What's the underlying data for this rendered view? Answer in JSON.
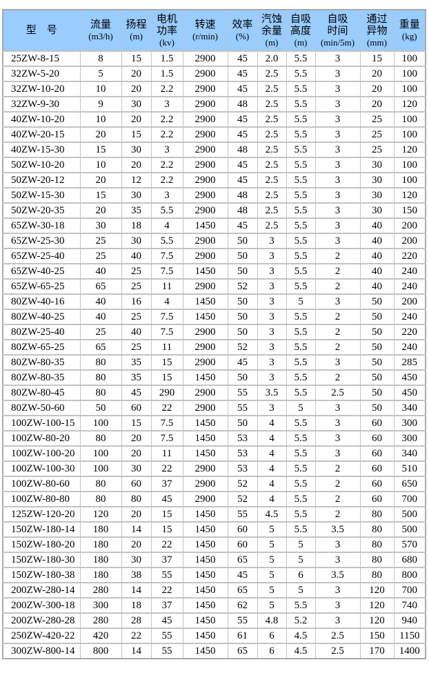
{
  "colors": {
    "header_bg": "#99ccff",
    "grid_border": "#c3c3c3",
    "outer_border": "#a9a9a9",
    "row_bg": "#ffffff",
    "text": "#000000"
  },
  "table": {
    "columns": [
      {
        "key": "model",
        "lines": [
          "型　号"
        ]
      },
      {
        "key": "flow",
        "lines": [
          "流量",
          "(m3/h)"
        ]
      },
      {
        "key": "head",
        "lines": [
          "扬程",
          "(m)"
        ]
      },
      {
        "key": "motor_power",
        "lines": [
          "电机",
          "功率",
          "(kv)"
        ]
      },
      {
        "key": "speed",
        "lines": [
          "转速",
          "(r/min)"
        ]
      },
      {
        "key": "efficiency",
        "lines": [
          "效率",
          "(%)"
        ]
      },
      {
        "key": "npsh",
        "lines": [
          "汽蚀",
          "余量",
          "(m)"
        ]
      },
      {
        "key": "suction_height",
        "lines": [
          "自吸",
          "高度",
          "(m)"
        ]
      },
      {
        "key": "suction_time",
        "lines": [
          "自吸",
          "时间",
          "(min/5m)"
        ]
      },
      {
        "key": "particle_size",
        "lines": [
          "通过",
          "异物",
          "(mm)"
        ]
      },
      {
        "key": "weight",
        "lines": [
          "重量",
          "(kg)"
        ]
      }
    ],
    "rows": [
      [
        "25ZW-8-15",
        "8",
        "15",
        "1.5",
        "2900",
        "45",
        "2.0",
        "5.5",
        "3",
        "15",
        "100"
      ],
      [
        "32ZW-5-20",
        "5",
        "20",
        "1.5",
        "2900",
        "45",
        "2.5",
        "5.5",
        "3",
        "20",
        "100"
      ],
      [
        "32ZW-10-20",
        "10",
        "20",
        "2.2",
        "2900",
        "45",
        "2.5",
        "5.5",
        "3",
        "20",
        "100"
      ],
      [
        "32ZW-9-30",
        "9",
        "30",
        "3",
        "2900",
        "48",
        "2.5",
        "5.5",
        "3",
        "20",
        "120"
      ],
      [
        "40ZW-10-20",
        "10",
        "20",
        "2.2",
        "2900",
        "45",
        "2.5",
        "5.5",
        "3",
        "25",
        "100"
      ],
      [
        "40ZW-20-15",
        "20",
        "15",
        "2.2",
        "2900",
        "45",
        "2.5",
        "5.5",
        "3",
        "25",
        "100"
      ],
      [
        "40ZW-15-30",
        "15",
        "30",
        "3",
        "2900",
        "48",
        "2.5",
        "5.5",
        "3",
        "25",
        "120"
      ],
      [
        "50ZW-10-20",
        "10",
        "20",
        "2.2",
        "2900",
        "45",
        "2.5",
        "5.5",
        "3",
        "30",
        "100"
      ],
      [
        "50ZW-20-12",
        "20",
        "12",
        "2.2",
        "2900",
        "45",
        "2.5",
        "5.5",
        "3",
        "30",
        "100"
      ],
      [
        "50ZW-15-30",
        "15",
        "30",
        "3",
        "2900",
        "48",
        "2.5",
        "5.5",
        "3",
        "30",
        "120"
      ],
      [
        "50ZW-20-35",
        "20",
        "35",
        "5.5",
        "2900",
        "48",
        "2.5",
        "5.5",
        "3",
        "30",
        "150"
      ],
      [
        "65ZW-30-18",
        "30",
        "18",
        "4",
        "1450",
        "45",
        "2.5",
        "5.5",
        "3",
        "40",
        "200"
      ],
      [
        "65ZW-25-30",
        "25",
        "30",
        "5.5",
        "2900",
        "50",
        "3",
        "5.5",
        "3",
        "40",
        "200"
      ],
      [
        "65ZW-25-40",
        "25",
        "40",
        "7.5",
        "2900",
        "50",
        "3",
        "5.5",
        "2",
        "40",
        "220"
      ],
      [
        "65ZW-40-25",
        "40",
        "25",
        "7.5",
        "1450",
        "50",
        "3",
        "5.5",
        "2",
        "40",
        "240"
      ],
      [
        "65ZW-65-25",
        "65",
        "25",
        "11",
        "2900",
        "52",
        "3",
        "5.5",
        "2",
        "40",
        "240"
      ],
      [
        "80ZW-40-16",
        "40",
        "16",
        "4",
        "1450",
        "50",
        "3",
        "5",
        "3",
        "50",
        "200"
      ],
      [
        "80ZW-40-25",
        "40",
        "25",
        "7.5",
        "1450",
        "50",
        "3",
        "5.5",
        "2",
        "50",
        "240"
      ],
      [
        "80ZW-25-40",
        "25",
        "40",
        "7.5",
        "2900",
        "50",
        "3",
        "5.5",
        "2",
        "50",
        "220"
      ],
      [
        "80ZW-65-25",
        "65",
        "25",
        "11",
        "2900",
        "52",
        "3",
        "5.5",
        "2",
        "50",
        "240"
      ],
      [
        "80ZW-80-35",
        "80",
        "35",
        "15",
        "2900",
        "45",
        "3",
        "5.5",
        "3",
        "50",
        "285"
      ],
      [
        "80ZW-80-35",
        "80",
        "35",
        "15",
        "1450",
        "50",
        "3",
        "5.5",
        "2",
        "50",
        "450"
      ],
      [
        "80ZW-80-45",
        "80",
        "45",
        "290",
        "2900",
        "55",
        "3.5",
        "5.5",
        "2.5",
        "50",
        "450"
      ],
      [
        "80ZW-50-60",
        "50",
        "60",
        "22",
        "2900",
        "55",
        "3",
        "5",
        "3",
        "50",
        "340"
      ],
      [
        "100ZW-100-15",
        "100",
        "15",
        "7.5",
        "1450",
        "50",
        "4",
        "5.5",
        "3",
        "60",
        "300"
      ],
      [
        "100ZW-80-20",
        "80",
        "20",
        "7.5",
        "1450",
        "53",
        "4",
        "5.5",
        "3",
        "60",
        "300"
      ],
      [
        "100ZW-100-20",
        "100",
        "20",
        "11",
        "1450",
        "53",
        "4",
        "5.5",
        "3",
        "60",
        "340"
      ],
      [
        "100ZW-100-30",
        "100",
        "30",
        "22",
        "2900",
        "53",
        "4",
        "5.5",
        "2",
        "60",
        "510"
      ],
      [
        "100ZW-80-60",
        "80",
        "60",
        "37",
        "2900",
        "52",
        "4",
        "5.5",
        "2",
        "60",
        "650"
      ],
      [
        "100ZW-80-80",
        "80",
        "80",
        "45",
        "2900",
        "52",
        "4",
        "5.5",
        "2",
        "60",
        "700"
      ],
      [
        "125ZW-120-20",
        "120",
        "20",
        "15",
        "1450",
        "55",
        "4.5",
        "5.5",
        "2",
        "80",
        "500"
      ],
      [
        "150ZW-180-14",
        "180",
        "14",
        "15",
        "1450",
        "60",
        "5",
        "5.5",
        "3.5",
        "80",
        "500"
      ],
      [
        "150ZW-180-20",
        "180",
        "20",
        "22",
        "1450",
        "60",
        "5",
        "5",
        "3",
        "80",
        "570"
      ],
      [
        "150ZW-180-30",
        "180",
        "30",
        "37",
        "1450",
        "65",
        "5",
        "5",
        "3",
        "80",
        "680"
      ],
      [
        "150ZW-180-38",
        "180",
        "38",
        "55",
        "1450",
        "45",
        "5",
        "6",
        "3.5",
        "80",
        "800"
      ],
      [
        "200ZW-280-14",
        "280",
        "14",
        "22",
        "1450",
        "65",
        "5",
        "5",
        "3",
        "120",
        "700"
      ],
      [
        "200ZW-300-18",
        "300",
        "18",
        "37",
        "1450",
        "62",
        "5",
        "5.5",
        "3",
        "120",
        "740"
      ],
      [
        "200ZW-280-28",
        "280",
        "28",
        "45",
        "1450",
        "55",
        "4.8",
        "5.2",
        "3",
        "120",
        "940"
      ],
      [
        "250ZW-420-22",
        "420",
        "22",
        "55",
        "1450",
        "61",
        "6",
        "4.5",
        "2.5",
        "150",
        "1150"
      ],
      [
        "300ZW-800-14",
        "800",
        "14",
        "55",
        "1450",
        "65",
        "6",
        "4.5",
        "2.5",
        "170",
        "1400"
      ]
    ]
  }
}
